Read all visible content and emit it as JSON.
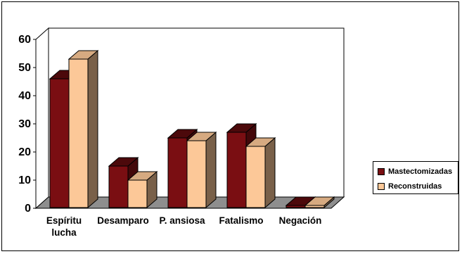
{
  "chart_data": {
    "type": "bar",
    "categories": [
      {
        "lines": [
          "Espíritu",
          "lucha"
        ]
      },
      {
        "lines": [
          "Desamparo"
        ]
      },
      {
        "lines": [
          "P. ansiosa"
        ]
      },
      {
        "lines": [
          "Fatalismo"
        ]
      },
      {
        "lines": [
          "Negación"
        ]
      }
    ],
    "series": [
      {
        "name": "Mastectomizadas",
        "values": [
          46,
          15,
          25,
          27,
          1
        ],
        "color": "#7a0e12"
      },
      {
        "name": "Reconstruidas",
        "values": [
          53,
          10,
          24,
          22,
          1
        ],
        "color": "#fcc898"
      }
    ],
    "yticks": [
      "0",
      "10",
      "20",
      "30",
      "40",
      "50",
      "60"
    ],
    "ylim": [
      0,
      60
    ],
    "grid": false,
    "legend_position": "right",
    "title": "",
    "xlabel": "",
    "ylabel": ""
  }
}
